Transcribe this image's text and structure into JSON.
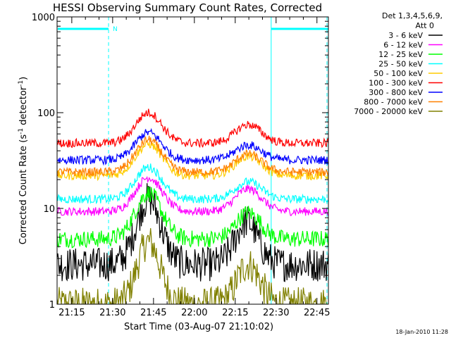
{
  "chart_data": {
    "type": "line",
    "title": "HESSI Observing Summary Count Rates, Corrected",
    "xlabel": "Start Time (03-Aug-07 21:10:02)",
    "ylabel_main": "Corrected Count Rate (s",
    "ylabel_sup1": "-1",
    "ylabel_mid": " detector",
    "ylabel_sup2": "-1",
    "ylabel_end": ")",
    "y_scale": "log",
    "ylim": [
      1,
      1000
    ],
    "xlim_minutes": [
      21.16,
      22.82
    ],
    "x_ticks": [
      {
        "label": "21:15",
        "min": 21.25
      },
      {
        "label": "21:30",
        "min": 21.5
      },
      {
        "label": "21:45",
        "min": 21.75
      },
      {
        "label": "22:00",
        "min": 22.0
      },
      {
        "label": "22:15",
        "min": 22.25
      },
      {
        "label": "22:30",
        "min": 22.5
      },
      {
        "label": "22:45",
        "min": 22.75
      }
    ],
    "y_ticks": [
      {
        "label": "1",
        "value": 1
      },
      {
        "label": "10",
        "value": 10
      },
      {
        "label": "100",
        "value": 100
      },
      {
        "label": "1000",
        "value": 1000
      }
    ],
    "legend_header": [
      "Det 1,3,4,5,6,9,",
      "Att 0"
    ],
    "legend_placement": "right",
    "timestamp": "18-Jan-2010 11:28",
    "night_marker": "N",
    "night_intervals_hours": [
      [
        21.16,
        21.475
      ],
      [
        22.47,
        22.82
      ]
    ],
    "series": [
      {
        "name": "3 - 6 keV",
        "color": "#000000",
        "base": 2.6,
        "peaks": [
          [
            21.72,
            12.5,
            0.075
          ],
          [
            22.32,
            7.3,
            0.07
          ]
        ]
      },
      {
        "name": "6 - 12 keV",
        "color": "#ff00ff",
        "base": 9.3,
        "peaks": [
          [
            21.72,
            21,
            0.08
          ],
          [
            22.33,
            16,
            0.08
          ]
        ]
      },
      {
        "name": "12 - 25 keV",
        "color": "#00ff00",
        "base": 4.8,
        "peaks": [
          [
            21.72,
            14.5,
            0.08
          ],
          [
            22.33,
            9,
            0.075
          ]
        ]
      },
      {
        "name": "25 - 50 keV",
        "color": "#00ffff",
        "base": 12.5,
        "peaks": [
          [
            21.72,
            27,
            0.08
          ],
          [
            22.33,
            19,
            0.08
          ]
        ]
      },
      {
        "name": "50 - 100 keV",
        "color": "#ffcc00",
        "base": 22,
        "peaks": [
          [
            21.72,
            47,
            0.08
          ],
          [
            22.33,
            35,
            0.08
          ]
        ]
      },
      {
        "name": "100 - 300 keV",
        "color": "#ff0000",
        "base": 48,
        "peaks": [
          [
            21.72,
            100,
            0.08
          ],
          [
            22.33,
            75,
            0.08
          ]
        ]
      },
      {
        "name": "300 - 800 keV",
        "color": "#0000ff",
        "base": 32,
        "peaks": [
          [
            21.72,
            62,
            0.08
          ],
          [
            22.33,
            46,
            0.08
          ]
        ]
      },
      {
        "name": "800 - 7000 keV",
        "color": "#ff8000",
        "base": 24,
        "peaks": [
          [
            21.72,
            52,
            0.08
          ],
          [
            22.33,
            37,
            0.08
          ]
        ]
      },
      {
        "name": "7000 - 20000 keV",
        "color": "#808000",
        "base": 1.0,
        "peaks": [
          [
            21.72,
            4.5,
            0.07
          ],
          [
            22.33,
            2.6,
            0.07
          ]
        ]
      }
    ]
  }
}
